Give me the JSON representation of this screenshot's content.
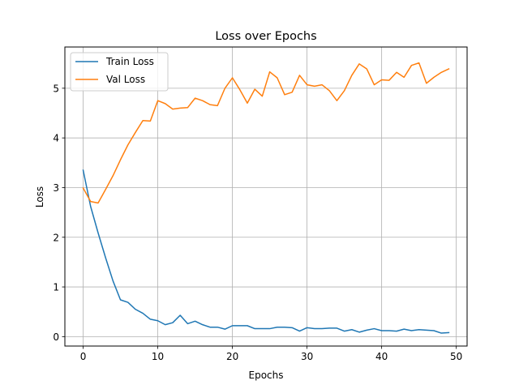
{
  "chart_data": {
    "type": "line",
    "title": "Loss over Epochs",
    "xlabel": "Epochs",
    "ylabel": "Loss",
    "xlim": [
      -2.45,
      51.45
    ],
    "ylim": [
      -0.19,
      5.83
    ],
    "xticks": [
      0,
      10,
      20,
      30,
      40,
      50
    ],
    "yticks": [
      0,
      1,
      2,
      3,
      4,
      5
    ],
    "grid": true,
    "legend_position": "top-left",
    "x": [
      0,
      1,
      2,
      3,
      4,
      5,
      6,
      7,
      8,
      9,
      10,
      11,
      12,
      13,
      14,
      15,
      16,
      17,
      18,
      19,
      20,
      21,
      22,
      23,
      24,
      25,
      26,
      27,
      28,
      29,
      30,
      31,
      32,
      33,
      34,
      35,
      36,
      37,
      38,
      39,
      40,
      41,
      42,
      43,
      44,
      45,
      46,
      47,
      48,
      49
    ],
    "series": [
      {
        "name": "Train Loss",
        "color": "#1f77b4",
        "values": [
          3.35,
          2.62,
          2.09,
          1.59,
          1.12,
          0.74,
          0.69,
          0.55,
          0.47,
          0.35,
          0.32,
          0.24,
          0.28,
          0.43,
          0.26,
          0.31,
          0.24,
          0.19,
          0.19,
          0.15,
          0.22,
          0.22,
          0.22,
          0.16,
          0.16,
          0.16,
          0.19,
          0.19,
          0.18,
          0.11,
          0.18,
          0.16,
          0.16,
          0.17,
          0.17,
          0.11,
          0.14,
          0.09,
          0.13,
          0.16,
          0.12,
          0.12,
          0.11,
          0.15,
          0.12,
          0.14,
          0.13,
          0.12,
          0.07,
          0.08
        ]
      },
      {
        "name": "Val Loss",
        "color": "#ff7f0e",
        "values": [
          2.99,
          2.72,
          2.69,
          2.96,
          3.24,
          3.56,
          3.86,
          4.11,
          4.35,
          4.34,
          4.75,
          4.69,
          4.58,
          4.6,
          4.61,
          4.8,
          4.75,
          4.67,
          4.65,
          5.0,
          5.21,
          4.97,
          4.7,
          4.98,
          4.84,
          5.33,
          5.21,
          4.87,
          4.92,
          5.26,
          5.07,
          5.04,
          5.07,
          4.95,
          4.75,
          4.95,
          5.26,
          5.49,
          5.39,
          5.07,
          5.17,
          5.16,
          5.32,
          5.22,
          5.46,
          5.51,
          5.1,
          5.22,
          5.32,
          5.39
        ]
      }
    ]
  }
}
